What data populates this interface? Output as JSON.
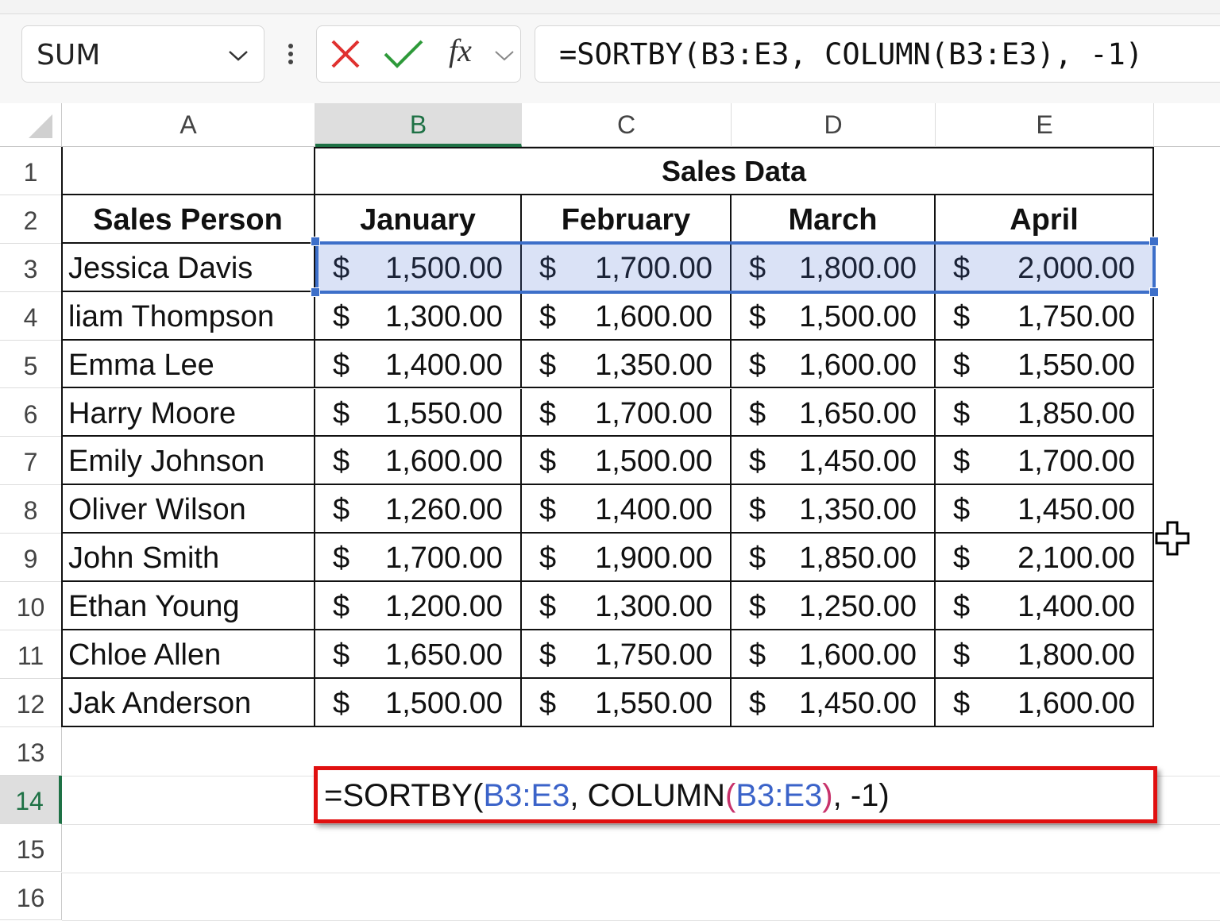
{
  "name_box": "SUM",
  "fx_label": "fx",
  "formula_bar": "=SORTBY(B3:E3, COLUMN(B3:E3), -1)",
  "column_headers": [
    "A",
    "B",
    "C",
    "D",
    "E"
  ],
  "row_headers": [
    "1",
    "2",
    "3",
    "4",
    "5",
    "6",
    "7",
    "8",
    "9",
    "10",
    "11",
    "12",
    "13",
    "14",
    "15",
    "16"
  ],
  "table": {
    "title": "Sales Data",
    "header": [
      "Sales Person",
      "January",
      "February",
      "March",
      "April"
    ],
    "currency_symbol": "$",
    "rows": [
      [
        "Jessica Davis",
        "1,500.00",
        "1,700.00",
        "1,800.00",
        "2,000.00"
      ],
      [
        "liam Thompson",
        "1,300.00",
        "1,600.00",
        "1,500.00",
        "1,750.00"
      ],
      [
        "Emma Lee",
        "1,400.00",
        "1,350.00",
        "1,600.00",
        "1,550.00"
      ],
      [
        "Harry Moore",
        "1,550.00",
        "1,700.00",
        "1,650.00",
        "1,850.00"
      ],
      [
        "Emily Johnson",
        "1,600.00",
        "1,500.00",
        "1,450.00",
        "1,700.00"
      ],
      [
        "Oliver Wilson",
        "1,260.00",
        "1,400.00",
        "1,350.00",
        "1,450.00"
      ],
      [
        "John Smith",
        "1,700.00",
        "1,900.00",
        "1,850.00",
        "2,100.00"
      ],
      [
        "Ethan Young",
        "1,200.00",
        "1,300.00",
        "1,250.00",
        "1,400.00"
      ],
      [
        "Chloe Allen",
        "1,650.00",
        "1,750.00",
        "1,600.00",
        "1,800.00"
      ],
      [
        "Jak Anderson",
        "1,500.00",
        "1,550.00",
        "1,450.00",
        "1,600.00"
      ]
    ]
  },
  "formula_cell": [
    {
      "text": "=SORTBY(",
      "color": "#111111"
    },
    {
      "text": "B3:E3",
      "color": "#3b63c9"
    },
    {
      "text": ", COLUMN",
      "color": "#111111"
    },
    {
      "text": "(",
      "color": "#c8326b"
    },
    {
      "text": "B3:E3",
      "color": "#3b63c9"
    },
    {
      "text": ")",
      "color": "#c8326b"
    },
    {
      "text": ", -1)",
      "color": "#111111"
    }
  ]
}
